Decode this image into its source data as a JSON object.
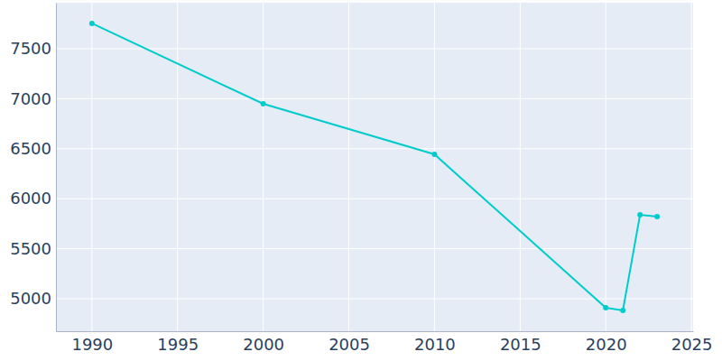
{
  "chart_data": {
    "type": "line",
    "x": [
      1990,
      2000,
      2010,
      2020,
      2021,
      2022,
      2023
    ],
    "values": [
      7753,
      6949,
      6444,
      4910,
      4883,
      5839,
      5821
    ],
    "color": "#00cccc",
    "marker": "circle",
    "xlim": [
      1987.9,
      2025.1
    ],
    "xticks": [
      1990,
      1995,
      2000,
      2005,
      2010,
      2015,
      2020,
      2025
    ],
    "ylim": [
      4675,
      7960
    ],
    "yticks": [
      5000,
      5500,
      6000,
      6500,
      7000,
      7500
    ],
    "grid": true
  }
}
